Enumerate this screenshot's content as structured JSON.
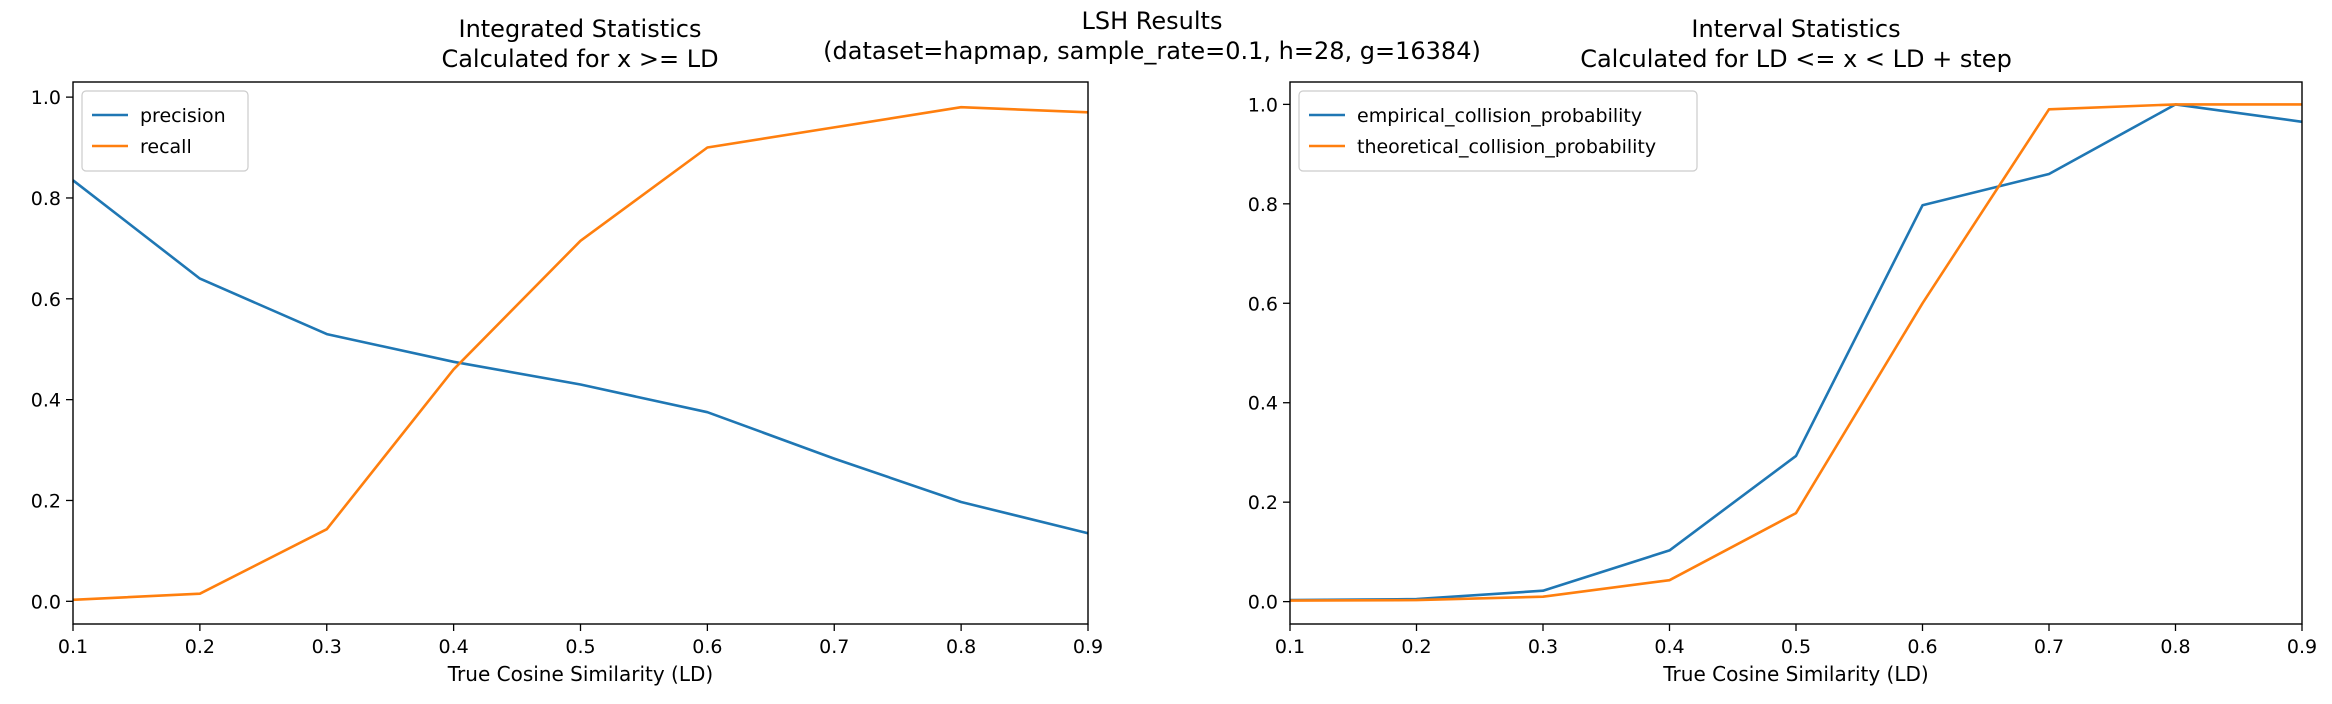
{
  "figure": {
    "suptitle_line1": "LSH Results",
    "suptitle_line2": "(dataset=hapmap, sample_rate=0.1, h=28, g=16384)"
  },
  "chart_data": [
    {
      "type": "line",
      "title_line1": "Integrated Statistics",
      "title_line2": "Calculated for x >= LD",
      "xlabel": "True Cosine Similarity (LD)",
      "ylabel": "",
      "x": [
        0.1,
        0.2,
        0.3,
        0.4,
        0.5,
        0.6,
        0.7,
        0.8,
        0.9
      ],
      "xticks": [
        "0.1",
        "0.2",
        "0.3",
        "0.4",
        "0.5",
        "0.6",
        "0.7",
        "0.8",
        "0.9"
      ],
      "yticks": [
        "0.0",
        "0.2",
        "0.4",
        "0.6",
        "0.8",
        "1.0"
      ],
      "xlim": [
        0.1,
        0.9
      ],
      "ylim": [
        -0.045,
        1.03
      ],
      "grid": false,
      "legend_loc": "upper left",
      "series": [
        {
          "name": "precision",
          "color": "#1f77b4",
          "values": [
            0.835,
            0.64,
            0.53,
            0.475,
            0.43,
            0.375,
            0.283,
            0.197,
            0.135
          ]
        },
        {
          "name": "recall",
          "color": "#ff7f0e",
          "values": [
            0.003,
            0.015,
            0.143,
            0.46,
            0.715,
            0.9,
            0.94,
            0.98,
            0.97
          ]
        }
      ]
    },
    {
      "type": "line",
      "title_line1": "Interval Statistics",
      "title_line2": "Calculated for LD <= x < LD + step",
      "xlabel": "True Cosine Similarity (LD)",
      "ylabel": "",
      "x": [
        0.1,
        0.2,
        0.3,
        0.4,
        0.5,
        0.6,
        0.7,
        0.8,
        0.9
      ],
      "xticks": [
        "0.1",
        "0.2",
        "0.3",
        "0.4",
        "0.5",
        "0.6",
        "0.7",
        "0.8",
        "0.9"
      ],
      "yticks": [
        "0.0",
        "0.2",
        "0.4",
        "0.6",
        "0.8",
        "1.0"
      ],
      "xlim": [
        0.1,
        0.9
      ],
      "ylim": [
        -0.045,
        1.045
      ],
      "grid": false,
      "legend_loc": "upper left",
      "series": [
        {
          "name": "empirical_collision_probability",
          "color": "#1f77b4",
          "values": [
            0.003,
            0.005,
            0.022,
            0.103,
            0.293,
            0.797,
            0.86,
            1.0,
            0.965
          ]
        },
        {
          "name": "theoretical_collision_probability",
          "color": "#ff7f0e",
          "values": [
            0.002,
            0.003,
            0.01,
            0.043,
            0.178,
            0.6,
            0.99,
            1.0,
            1.0
          ]
        }
      ]
    }
  ]
}
